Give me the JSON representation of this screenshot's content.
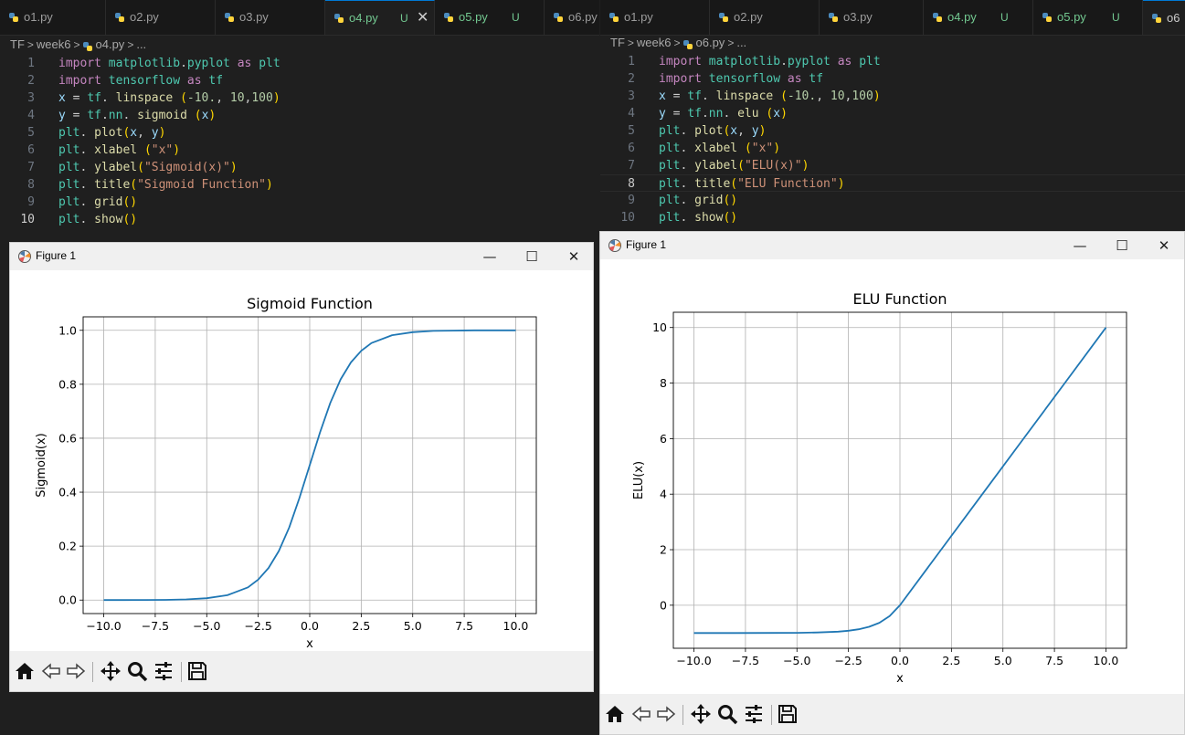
{
  "left_editor": {
    "tabs": [
      {
        "label": "o1.py",
        "modified": false
      },
      {
        "label": "o2.py",
        "modified": false
      },
      {
        "label": "o3.py",
        "modified": false
      },
      {
        "label": "o4.py",
        "modified": true,
        "active": true
      },
      {
        "label": "o5.py",
        "modified": true
      },
      {
        "label": "o6.py",
        "modified": false
      }
    ],
    "untracked_badge": "U",
    "breadcrumb": [
      "TF",
      "week6",
      "o4.py",
      "..."
    ],
    "line_numbers": [
      "1",
      "2",
      "3",
      "4",
      "5",
      "6",
      "7",
      "8",
      "9",
      "10"
    ],
    "current_line": "10",
    "code_lines": [
      "import matplotlib.pyplot as plt",
      "import tensorflow as tf",
      "x = tf. linspace (-10., 10,100)",
      "y = tf.nn. sigmoid (x)",
      "plt. plot(x, y)",
      "plt. xlabel (\"x\")",
      "plt. ylabel(\"Sigmoid(x)\")",
      "plt. title(\"Sigmoid Function\")",
      "plt. grid()",
      "plt. show()"
    ]
  },
  "right_editor": {
    "tabs": [
      {
        "label": "o1.py",
        "modified": false
      },
      {
        "label": "o2.py",
        "modified": false
      },
      {
        "label": "o3.py",
        "modified": false
      },
      {
        "label": "o4.py",
        "modified": true
      },
      {
        "label": "o5.py",
        "modified": true
      },
      {
        "label": "o6",
        "modified": false,
        "active": true
      }
    ],
    "untracked_badge": "U",
    "breadcrumb": [
      "TF",
      "week6",
      "o6.py",
      "..."
    ],
    "line_numbers": [
      "1",
      "2",
      "3",
      "4",
      "5",
      "6",
      "7",
      "8",
      "9",
      "10"
    ],
    "current_line": "8",
    "code_lines": [
      "import matplotlib.pyplot as plt",
      "import tensorflow as tf",
      "x = tf. linspace (-10., 10,100)",
      "y = tf.nn. elu (x)",
      "plt. plot(x, y)",
      "plt. xlabel (\"x\")",
      "plt. ylabel(\"ELU(x)\")",
      "plt. title(\"ELU Function\")",
      "plt. grid()",
      "plt. show()"
    ]
  },
  "figure_windows": [
    {
      "title": "Figure 1",
      "controls": {
        "minimize": "—",
        "maximize": "☐",
        "close": "✕"
      }
    },
    {
      "title": "Figure 1",
      "controls": {
        "minimize": "—",
        "maximize": "☐",
        "close": "✕"
      }
    }
  ],
  "toolbar_icons": [
    "home-icon",
    "back-icon",
    "forward-icon",
    "pan-icon",
    "zoom-icon",
    "configure-icon",
    "save-icon"
  ],
  "colors": {
    "line": "#1f77b4",
    "grid": "#b0b0b0",
    "editor_bg": "#1f1f1f",
    "active_tab_border": "#0078d4",
    "modified_tab": "#73c991"
  },
  "chart_data": [
    {
      "type": "line",
      "title": "Sigmoid Function",
      "xlabel": "x",
      "ylabel": "Sigmoid(x)",
      "xlim": [
        -11,
        11
      ],
      "ylim": [
        -0.05,
        1.05
      ],
      "xticks": [
        -10.0,
        -7.5,
        -5.0,
        -2.5,
        0.0,
        2.5,
        5.0,
        7.5,
        10.0
      ],
      "xtick_labels": [
        "−10.0",
        "−7.5",
        "−5.0",
        "−2.5",
        "0.0",
        "2.5",
        "5.0",
        "7.5",
        "10.0"
      ],
      "yticks": [
        0.0,
        0.2,
        0.4,
        0.6,
        0.8,
        1.0
      ],
      "ytick_labels": [
        "0.0",
        "0.2",
        "0.4",
        "0.6",
        "0.8",
        "1.0"
      ],
      "grid": true,
      "series": [
        {
          "x": [
            -10,
            -9,
            -8,
            -7,
            -6,
            -5,
            -4,
            -3,
            -2.5,
            -2,
            -1.5,
            -1,
            -0.5,
            0,
            0.5,
            1,
            1.5,
            2,
            2.5,
            3,
            4,
            5,
            6,
            7,
            8,
            9,
            10
          ],
          "y": [
            0.0,
            0.0001,
            0.0003,
            0.0009,
            0.0025,
            0.0067,
            0.018,
            0.047,
            0.076,
            0.119,
            0.182,
            0.269,
            0.378,
            0.5,
            0.622,
            0.731,
            0.818,
            0.881,
            0.924,
            0.953,
            0.982,
            0.993,
            0.998,
            0.999,
            1.0,
            1.0,
            1.0
          ]
        }
      ]
    },
    {
      "type": "line",
      "title": "ELU Function",
      "xlabel": "x",
      "ylabel": "ELU(x)",
      "xlim": [
        -11,
        11
      ],
      "ylim": [
        -1.55,
        10.55
      ],
      "xticks": [
        -10.0,
        -7.5,
        -5.0,
        -2.5,
        0.0,
        2.5,
        5.0,
        7.5,
        10.0
      ],
      "xtick_labels": [
        "−10.0",
        "−7.5",
        "−5.0",
        "−2.5",
        "0.0",
        "2.5",
        "5.0",
        "7.5",
        "10.0"
      ],
      "yticks": [
        0,
        2,
        4,
        6,
        8,
        10
      ],
      "ytick_labels": [
        "0",
        "2",
        "4",
        "6",
        "8",
        "10"
      ],
      "grid": true,
      "series": [
        {
          "x": [
            -10,
            -8,
            -6,
            -5,
            -4,
            -3,
            -2.5,
            -2,
            -1.5,
            -1,
            -0.5,
            0,
            2,
            4,
            6,
            8,
            10
          ],
          "y": [
            -1.0,
            -1.0,
            -0.998,
            -0.993,
            -0.982,
            -0.95,
            -0.918,
            -0.865,
            -0.777,
            -0.632,
            -0.393,
            0,
            2,
            4,
            6,
            8,
            10
          ]
        }
      ]
    }
  ]
}
